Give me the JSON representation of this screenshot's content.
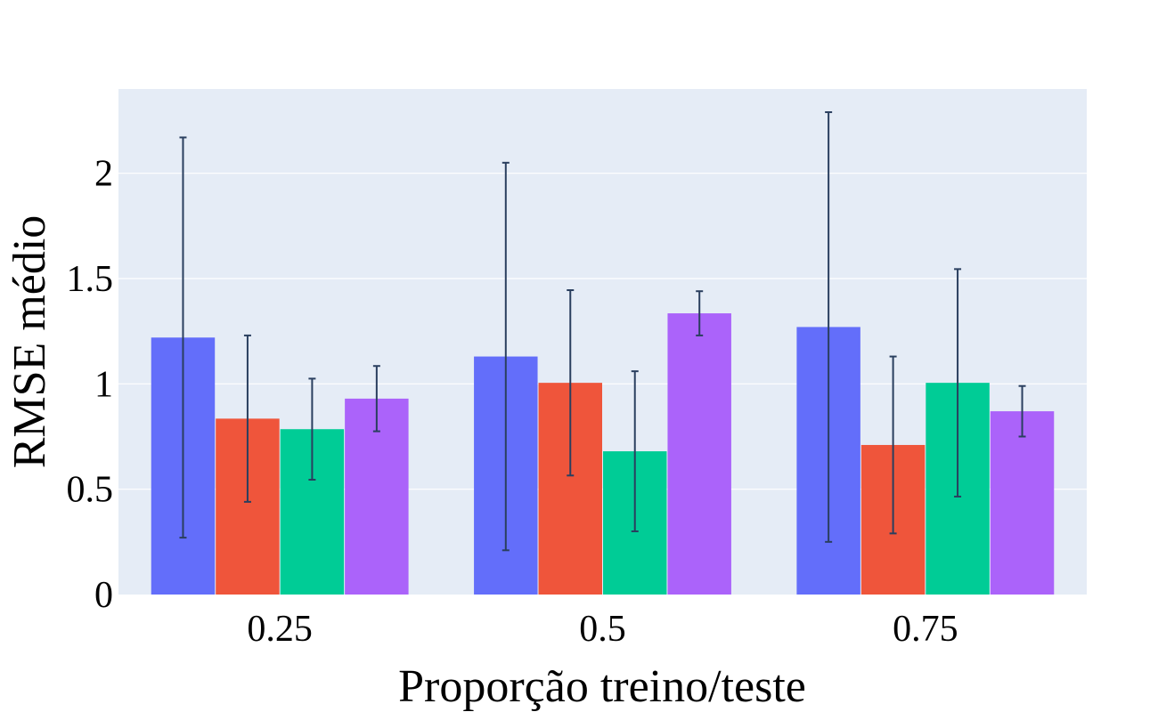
{
  "chart_data": {
    "type": "bar",
    "title": "",
    "xlabel": "Proporção treino/teste",
    "ylabel": "RMSE médio",
    "categories": [
      "0.25",
      "0.5",
      "0.75"
    ],
    "ylim": [
      0,
      2.4
    ],
    "yticks": [
      0,
      0.5,
      1,
      1.5,
      2
    ],
    "ytick_labels": [
      "0",
      "0.5",
      "1",
      "1.5",
      "2"
    ],
    "grid": true,
    "legend": "none",
    "series": [
      {
        "color": "#636efa",
        "values": [
          1.22,
          1.13,
          1.27
        ],
        "error": [
          0.95,
          0.92,
          1.02
        ]
      },
      {
        "color": "#ef553b",
        "values": [
          0.835,
          1.005,
          0.71
        ],
        "error": [
          0.395,
          0.44,
          0.42
        ]
      },
      {
        "color": "#00cc96",
        "values": [
          0.785,
          0.68,
          1.005
        ],
        "error": [
          0.24,
          0.38,
          0.54
        ]
      },
      {
        "color": "#ab63fa",
        "values": [
          0.93,
          1.335,
          0.87
        ],
        "error": [
          0.155,
          0.105,
          0.12
        ]
      }
    ],
    "error_bar_color": "#2a3f5f",
    "plot_bg": "#e5ecf6",
    "grid_color": "#ffffff"
  }
}
